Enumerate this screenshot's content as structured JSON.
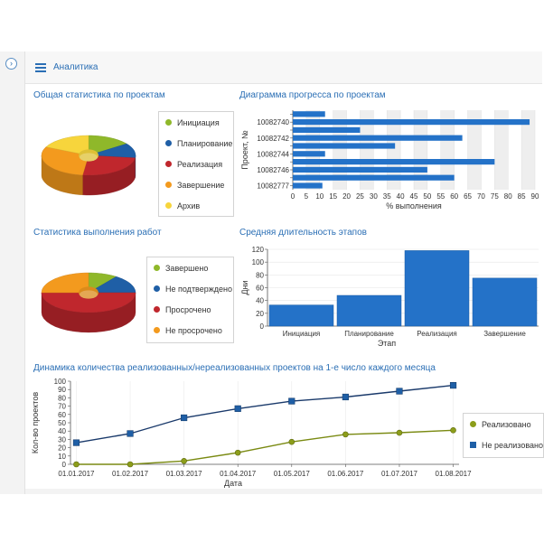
{
  "header": {
    "title": "Аналитика"
  },
  "sections": {
    "stats": "Общая статистика по проектам",
    "progress": "Диаграмма прогресса по проектам",
    "work": "Статистика выполнения работ",
    "duration": "Средняя длительность этапов",
    "dynamics": "Динамика количества реализованных/нереализованных проектов на 1-е число каждого месяца"
  },
  "colors": {
    "accent": "#2b6fb5",
    "green": "#8fb82a",
    "blue": "#1f5fa6",
    "red": "#c0272d",
    "orange": "#f39a1e",
    "yellow": "#f7d53c",
    "navy": "#1a3a6b",
    "olive": "#8c9d1a"
  },
  "legend_stats": [
    {
      "label": "Инициация",
      "color": "#8fb82a"
    },
    {
      "label": "Планирование",
      "color": "#1f5fa6"
    },
    {
      "label": "Реализация",
      "color": "#c0272d"
    },
    {
      "label": "Завершение",
      "color": "#f39a1e"
    },
    {
      "label": "Архив",
      "color": "#f7d53c"
    }
  ],
  "legend_work": [
    {
      "label": "Завершено",
      "color": "#8fb82a"
    },
    {
      "label": "Не подтверждено",
      "color": "#1f5fa6"
    },
    {
      "label": "Просрочено",
      "color": "#c0272d"
    },
    {
      "label": "Не просрочено",
      "color": "#f39a1e"
    }
  ],
  "legend_dynamics": [
    {
      "label": "Реализовано",
      "color": "#8c9d1a"
    },
    {
      "label": "Не реализовано",
      "color": "#1f5fa6"
    }
  ],
  "chart_data": [
    {
      "type": "pie",
      "categories": [
        "Инициация",
        "Планирование",
        "Реализация",
        "Завершение",
        "Архив"
      ],
      "values": [
        15,
        12,
        25,
        30,
        18
      ],
      "title": "Общая статистика по проектам"
    },
    {
      "type": "bar",
      "orientation": "horizontal",
      "title": "Диаграмма прогресса по проектам",
      "categories": [
        "",
        "10082740",
        "",
        "10082742",
        "",
        "10082744",
        "",
        "10082746",
        "",
        "10082777"
      ],
      "values": [
        12,
        88,
        25,
        63,
        38,
        12,
        75,
        50,
        60,
        11
      ],
      "xlabel": "% выполнения",
      "ylabel": "Проект, №",
      "xlim": [
        0,
        90
      ],
      "xticks": [
        "0",
        "5",
        "10",
        "15",
        "20",
        "25",
        "30",
        "35",
        "40",
        "45",
        "50",
        "55",
        "60",
        "65",
        "70",
        "75",
        "80",
        "85",
        "90"
      ]
    },
    {
      "type": "pie",
      "categories": [
        "Завершено",
        "Не подтверждено",
        "Просрочено",
        "Не просрочено"
      ],
      "values": [
        10,
        15,
        50,
        25
      ],
      "title": "Статистика выполнения работ"
    },
    {
      "type": "bar",
      "title": "Средняя длительность этапов",
      "categories": [
        "Инициация",
        "Планирование",
        "Реализация",
        "Завершение"
      ],
      "values": [
        33,
        48,
        118,
        75
      ],
      "xlabel": "Этап",
      "ylabel": "Дни",
      "ylim": [
        0,
        120
      ],
      "yticks": [
        "0",
        "20",
        "40",
        "60",
        "80",
        "100",
        "120"
      ]
    },
    {
      "type": "line",
      "title": "Динамика количества реализованных/нереализованных проектов на 1-е число каждого месяца",
      "x": [
        "01.01.2017",
        "01.02.2017",
        "01.03.2017",
        "01.04.2017",
        "01.05.2017",
        "01.06.2017",
        "01.07.2017",
        "01.08.2017"
      ],
      "series": [
        {
          "name": "Реализовано",
          "values": [
            0,
            0,
            4,
            14,
            27,
            36,
            38,
            41
          ]
        },
        {
          "name": "Не реализовано",
          "values": [
            26,
            37,
            56,
            67,
            76,
            81,
            88,
            95
          ]
        }
      ],
      "xlabel": "Дата",
      "ylabel": "Кол-во проектов",
      "ylim": [
        0,
        100
      ],
      "yticks": [
        "0",
        "10",
        "20",
        "30",
        "40",
        "50",
        "60",
        "70",
        "80",
        "90",
        "100"
      ]
    }
  ]
}
